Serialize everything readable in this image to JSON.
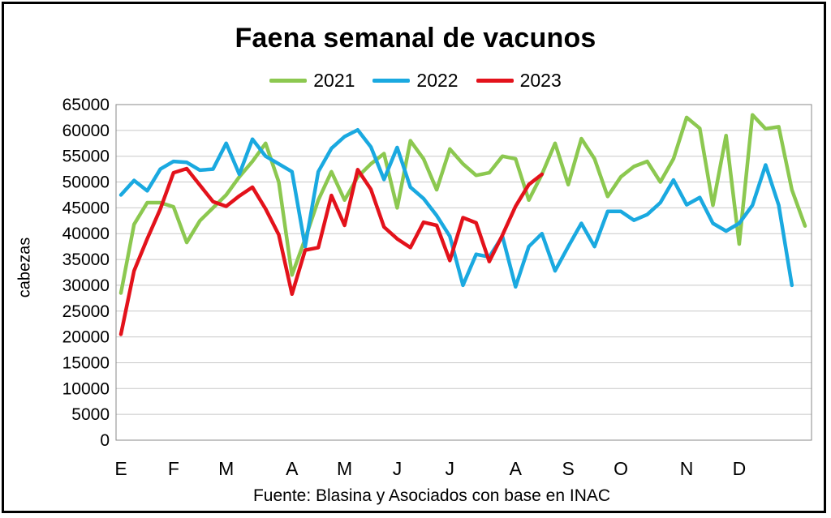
{
  "chart_data": {
    "type": "line",
    "title": "Faena semanal de vacunos",
    "ylabel": "cabezas",
    "xlabel": "",
    "source": "Fuente: Blasina y Asociados con base en INAC",
    "ylim": [
      0,
      65000
    ],
    "ytick_step": 5000,
    "y_ticks": [
      "65000",
      "60000",
      "55000",
      "50000",
      "45000",
      "40000",
      "35000",
      "30000",
      "25000",
      "20000",
      "15000",
      "10000",
      "5000",
      "0"
    ],
    "x_ticks": [
      {
        "label": "E",
        "week": 1
      },
      {
        "label": "F",
        "week": 5
      },
      {
        "label": "M",
        "week": 9
      },
      {
        "label": "A",
        "week": 14
      },
      {
        "label": "M",
        "week": 18
      },
      {
        "label": "J",
        "week": 22
      },
      {
        "label": "J",
        "week": 26
      },
      {
        "label": "A",
        "week": 31
      },
      {
        "label": "S",
        "week": 35
      },
      {
        "label": "O",
        "week": 39
      },
      {
        "label": "N",
        "week": 44
      },
      {
        "label": "D",
        "week": 48
      }
    ],
    "x_range": [
      1,
      53
    ],
    "grid": true,
    "legend_position": "top",
    "series": [
      {
        "name": "2021",
        "color": "#8cc850",
        "values": [
          28500,
          41800,
          46000,
          46000,
          45200,
          38300,
          42500,
          45000,
          47500,
          51000,
          54000,
          57500,
          50000,
          32000,
          39000,
          46500,
          52000,
          46500,
          51000,
          53500,
          55500,
          45000,
          58000,
          54500,
          48500,
          56400,
          53500,
          51300,
          51800,
          55000,
          54500,
          46500,
          51500,
          57500,
          49500,
          58400,
          54500,
          47200,
          51000,
          53000,
          54000,
          50000,
          54500,
          62500,
          60400,
          45500,
          59000,
          38000,
          63000,
          60300,
          60700,
          48500,
          41500
        ]
      },
      {
        "name": "2022",
        "color": "#1aa9e0",
        "values": [
          47500,
          50300,
          48300,
          52500,
          54000,
          53800,
          52300,
          52500,
          57500,
          51500,
          58300,
          55000,
          53500,
          52000,
          37500,
          52000,
          56500,
          58800,
          60100,
          56800,
          50500,
          56700,
          49000,
          46800,
          43500,
          39500,
          30000,
          36000,
          35500,
          39500,
          29700,
          37500,
          40000,
          32800,
          37500,
          42000,
          37500,
          44300,
          44300,
          42600,
          43700,
          46000,
          50400,
          45600,
          47000,
          42000,
          40500,
          42000,
          45500,
          53300,
          45500,
          30000
        ]
      },
      {
        "name": "2023",
        "color": "#e3121b",
        "values": [
          20500,
          32800,
          39000,
          44800,
          51800,
          52600,
          49400,
          46200,
          45300,
          47300,
          49000,
          44800,
          39800,
          28300,
          36800,
          37300,
          47400,
          41600,
          52400,
          48600,
          41300,
          39000,
          37300,
          42200,
          41600,
          34800,
          43100,
          42100,
          34600,
          39700,
          45300,
          49500,
          51500
        ]
      }
    ]
  }
}
